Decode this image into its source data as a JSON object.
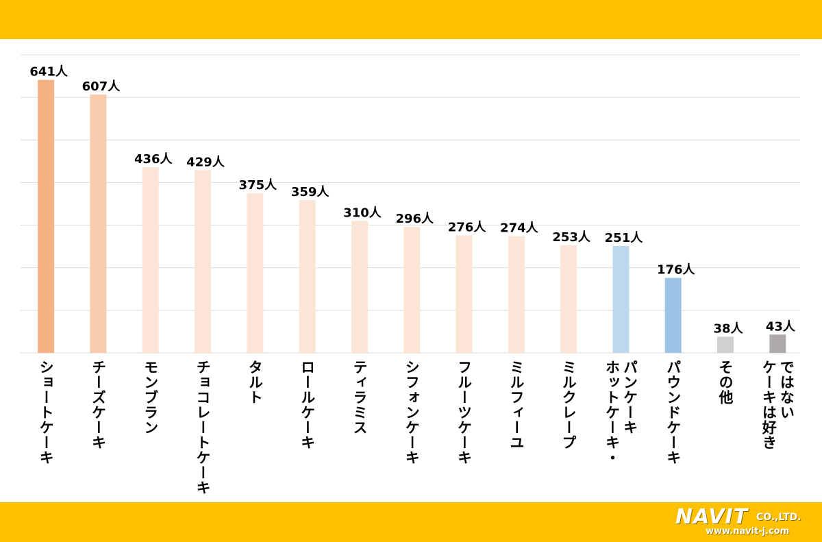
{
  "colors": {
    "band": "#FFC000",
    "grid": "#D9D9D9",
    "text": "#000000"
  },
  "logo": {
    "name": "NAVIT",
    "company": "CO.,LTD.",
    "url": "www.navit-j.com"
  },
  "chart_data": {
    "type": "bar",
    "title": "",
    "xlabel": "",
    "ylabel": "",
    "ylim": [
      0,
      700
    ],
    "grid": true,
    "unit": "人",
    "categories": [
      "ショートケーキ",
      "チーズケーキ",
      "モンブラン",
      "チョコレートケーキ",
      "タルト",
      "ロールケーキ",
      "ティラミス",
      "シフォンケーキ",
      "フルーツケーキ",
      "ミルフィーユ",
      "ミルクレープ",
      "ホットケーキ・パンケーキ",
      "パウンドケーキ",
      "その他",
      "ケーキは好きではない"
    ],
    "values": [
      641,
      607,
      436,
      429,
      375,
      359,
      310,
      296,
      276,
      274,
      253,
      251,
      176,
      38,
      43
    ],
    "value_labels": [
      "641人",
      "607人",
      "436人",
      "429人",
      "375人",
      "359人",
      "310人",
      "296人",
      "276人",
      "274人",
      "253人",
      "251人",
      "176人",
      "38人",
      "43人"
    ],
    "label_lines": [
      [
        "ショートケーキ"
      ],
      [
        "チーズケーキ"
      ],
      [
        "モンブラン"
      ],
      [
        "チョコレートケーキ"
      ],
      [
        "タルト"
      ],
      [
        "ロールケーキ"
      ],
      [
        "ティラミス"
      ],
      [
        "シフォンケーキ"
      ],
      [
        "フルーツケーキ"
      ],
      [
        "ミルフィーユ"
      ],
      [
        "ミルクレープ"
      ],
      [
        "ホットケーキ・",
        "パンケーキ"
      ],
      [
        "パウンドケーキ"
      ],
      [
        "その他"
      ],
      [
        "ケーキは好き",
        "ではない"
      ]
    ],
    "bar_colors": [
      "#F4B183",
      "#F8CBAD",
      "#FBE5D6",
      "#FBE5D6",
      "#FBE5D6",
      "#FBE5D6",
      "#FBE5D6",
      "#FBE5D6",
      "#FBE5D6",
      "#FBE5D6",
      "#FBE5D6",
      "#BDD7EE",
      "#9DC3E6",
      "#D0D0D0",
      "#AEAAAA"
    ]
  }
}
